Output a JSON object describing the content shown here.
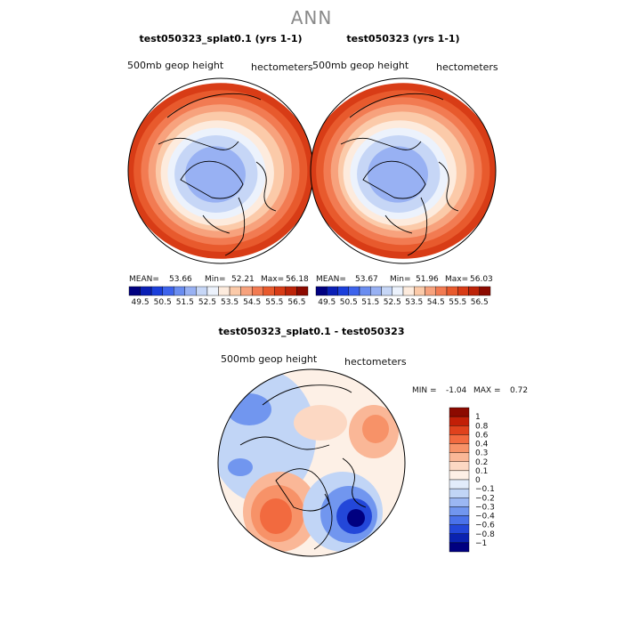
{
  "figure": {
    "main_title": "ANN"
  },
  "chart_data": [
    {
      "type": "heatmap",
      "title": "test050323_splat0.1 (yrs 1-1)",
      "left_label": "500mb geop height",
      "right_label": "hectometers",
      "mean_label": "MEAN=",
      "mean_value": "53.66",
      "min_label": "Min=",
      "min_value": "52.21",
      "max_label": "Max=",
      "max_value": "56.18",
      "colorbar_levels": [
        "49.5",
        "50.5",
        "51.5",
        "52.5",
        "53.5",
        "54.5",
        "55.5",
        "56.5"
      ],
      "colors": [
        "#000080",
        "#0a1fb5",
        "#1b3fdb",
        "#3d63ec",
        "#6a8df0",
        "#98b1f3",
        "#c6d6f6",
        "#ecf2fc",
        "#fdebdd",
        "#fbcaa9",
        "#f7a27d",
        "#f27b52",
        "#e85a2d",
        "#d83c16",
        "#bd2409",
        "#8c0a00"
      ]
    },
    {
      "type": "heatmap",
      "title": "test050323 (yrs 1-1)",
      "left_label": "500mb geop height",
      "right_label": "hectometers",
      "mean_label": "MEAN=",
      "mean_value": "53.67",
      "min_label": "Min=",
      "min_value": "51.96",
      "max_label": "Max=",
      "max_value": "56.03",
      "colorbar_levels": [
        "49.5",
        "50.5",
        "51.5",
        "52.5",
        "53.5",
        "54.5",
        "55.5",
        "56.5"
      ],
      "colors": [
        "#000080",
        "#0a1fb5",
        "#1b3fdb",
        "#3d63ec",
        "#6a8df0",
        "#98b1f3",
        "#c6d6f6",
        "#ecf2fc",
        "#fdebdd",
        "#fbcaa9",
        "#f7a27d",
        "#f27b52",
        "#e85a2d",
        "#d83c16",
        "#bd2409",
        "#8c0a00"
      ]
    },
    {
      "type": "heatmap",
      "title": "test050323_splat0.1 - test050323",
      "left_label": "500mb geop height",
      "right_label": "hectometers",
      "min_label": "MIN =",
      "min_value": "-1.04",
      "max_label": "MAX =",
      "max_value": "0.72",
      "colorbar_levels": [
        "1",
        "0.8",
        "0.6",
        "0.4",
        "0.3",
        "0.2",
        "0.1",
        "0",
        "−0.1",
        "−0.2",
        "−0.3",
        "−0.4",
        "−0.6",
        "−0.8",
        "−1"
      ],
      "colors": [
        "#8c0a00",
        "#c21f07",
        "#e0421d",
        "#f26a3f",
        "#f79268",
        "#fab797",
        "#fcd8c3",
        "#fdf0e6",
        "#e2ecfb",
        "#c1d5f6",
        "#9bb7f3",
        "#7196ef",
        "#4a72ea",
        "#2347d9",
        "#0a22b0",
        "#000080"
      ]
    }
  ]
}
